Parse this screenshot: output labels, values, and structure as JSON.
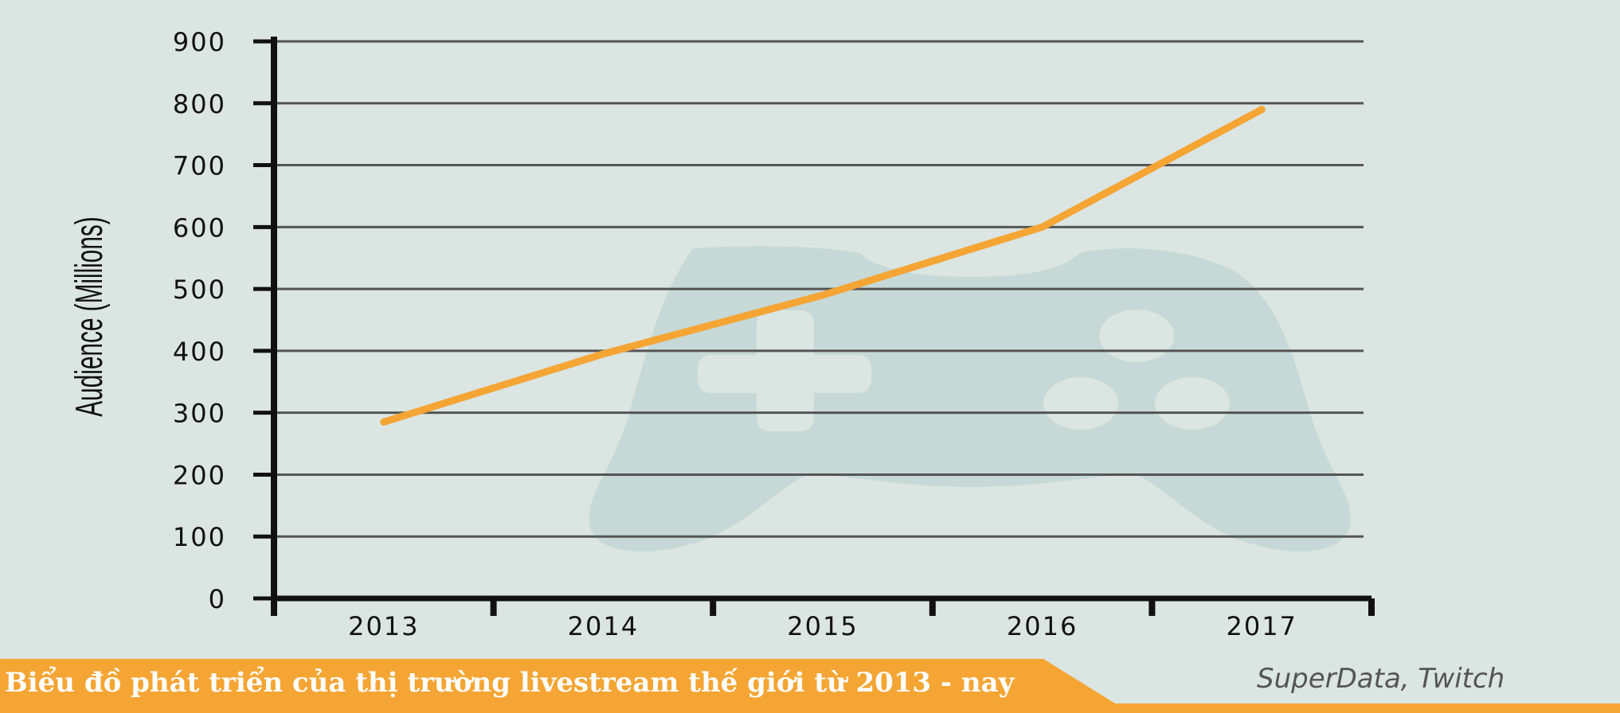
{
  "chart_data": {
    "type": "line",
    "x": [
      "2013",
      "2014",
      "2015",
      "2016",
      "2017"
    ],
    "series": [
      {
        "values": [
          285,
          395,
          490,
          600,
          790
        ]
      }
    ],
    "ylabel": "Audience (Millions)",
    "xlabel": "",
    "ylim": [
      0,
      900
    ],
    "yticks": [
      "0",
      "100",
      "200",
      "300",
      "400",
      "500",
      "600",
      "700",
      "800",
      "900"
    ],
    "grid": true,
    "line_color": "#f5a534",
    "background_icon": "gamepad-icon"
  },
  "footer": {
    "title": "Biểu đồ phát triển của thị trường livestream thế giới từ 2013 - nay",
    "source": "SuperData, Twitch"
  },
  "colors": {
    "background": "#dbe5e2",
    "accent": "#f5a534",
    "icon": "#c6d9d7",
    "axis": "#111111",
    "grid": "#555555"
  }
}
